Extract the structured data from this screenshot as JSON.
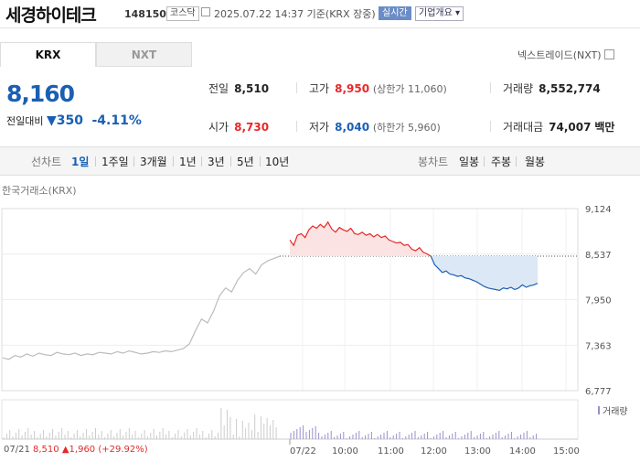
{
  "header": {
    "name": "세경하이테크",
    "code": "148150",
    "market": "코스닥",
    "time": "2025.07.22 14:37 기준(KRX 장중)",
    "live": "실시간",
    "info": "기업개요"
  },
  "tabs": [
    "KRX",
    "NXT"
  ],
  "nxt_link": "넥스트레이드(NXT)",
  "quote": {
    "price": "8,160",
    "change_label": "전일대비",
    "change_value": "350",
    "change_rate": "-4.11%"
  },
  "stats": {
    "prev_label": "전일",
    "prev": "8,510",
    "high_label": "고가",
    "high": "8,950",
    "upper": "(상한가 11,060)",
    "volume_label": "거래량",
    "volume": "8,552,774",
    "open_label": "시가",
    "open": "8,730",
    "low_label": "저가",
    "low": "8,040",
    "lower": "(하한가 5,960)",
    "amount_label": "거래대금",
    "amount": "74,007",
    "amount_unit": "백만"
  },
  "periods": {
    "line_label": "선차트",
    "line": [
      "1일",
      "1주일",
      "3개월",
      "1년",
      "3년",
      "5년",
      "10년"
    ],
    "candle_label": "봉차트",
    "candle": [
      "일봉",
      "주봉",
      "월봉"
    ]
  },
  "chart_source": "한국거래소(KRX)",
  "chart_data": {
    "type": "line",
    "y_ticks": [
      "9,124",
      "8,537",
      "7,950",
      "7,363",
      "6,777"
    ],
    "y_range": [
      6777,
      9124
    ],
    "baseline": 8510,
    "x_ticks": [
      "07/22",
      "10:00",
      "11:00",
      "12:00",
      "13:00",
      "14:00",
      "15:00"
    ],
    "volume_label": "거래량",
    "prev_day": {
      "date": "07/21",
      "close": "8,510",
      "change": "▲1,960",
      "rate": "(+29.92%)"
    },
    "prev_series": [
      7200,
      7180,
      7230,
      7210,
      7250,
      7220,
      7260,
      7240,
      7230,
      7270,
      7250,
      7240,
      7260,
      7230,
      7250,
      7240,
      7270,
      7260,
      7250,
      7280,
      7260,
      7290,
      7270,
      7250,
      7260,
      7280,
      7270,
      7290,
      7280,
      7300,
      7320,
      7380,
      7550,
      7700,
      7650,
      7800,
      8000,
      8100,
      8050,
      8200,
      8300,
      8350,
      8280,
      8400,
      8450,
      8480,
      8510
    ],
    "today_series": [
      8720,
      8650,
      8780,
      8800,
      8750,
      8850,
      8900,
      8870,
      8920,
      8880,
      8950,
      8860,
      8820,
      8880,
      8850,
      8830,
      8870,
      8800,
      8790,
      8820,
      8780,
      8800,
      8760,
      8790,
      8750,
      8770,
      8720,
      8700,
      8680,
      8690,
      8650,
      8660,
      8600,
      8580,
      8620,
      8560,
      8540,
      8510,
      8400,
      8350,
      8300,
      8320,
      8280,
      8270,
      8250,
      8260,
      8230,
      8220,
      8200,
      8180,
      8150,
      8120,
      8100,
      8090,
      8080,
      8070,
      8100,
      8090,
      8110,
      8080,
      8100,
      8140,
      8110,
      8130,
      8140,
      8160
    ]
  }
}
